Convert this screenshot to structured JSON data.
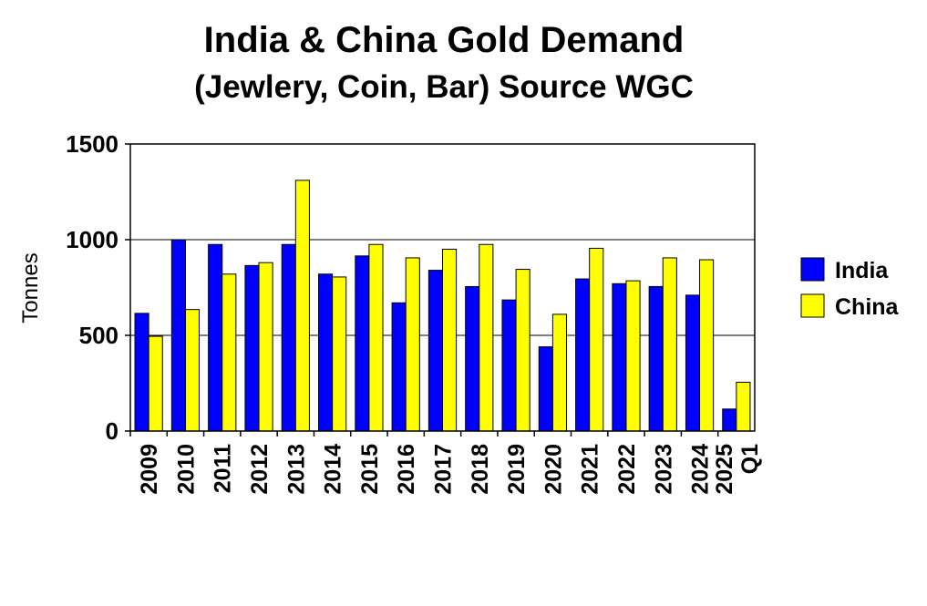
{
  "chart_data": {
    "type": "bar",
    "title": "India & China Gold Demand",
    "subtitle": "(Jewlery, Coin, Bar) Source WGC",
    "xlabel": "",
    "ylabel": "Tonnes",
    "ylim": [
      0,
      1500
    ],
    "yticks": [
      0,
      500,
      1000,
      1500
    ],
    "grid": true,
    "legend_position": "right",
    "categories": [
      "2009",
      "2010",
      "2011",
      "2012",
      "2013",
      "2014",
      "2015",
      "2016",
      "2017",
      "2018",
      "2019",
      "2020",
      "2021",
      "2022",
      "2023",
      "2024",
      "Q1 2025"
    ],
    "series": [
      {
        "name": "India",
        "color": "#0000ff",
        "values": [
          615,
          1000,
          975,
          865,
          975,
          820,
          915,
          670,
          840,
          755,
          685,
          440,
          795,
          770,
          755,
          710,
          115
        ]
      },
      {
        "name": "China",
        "color": "#ffff00",
        "values": [
          495,
          635,
          820,
          880,
          1310,
          805,
          975,
          905,
          950,
          975,
          845,
          610,
          955,
          785,
          905,
          895,
          255
        ]
      }
    ]
  }
}
